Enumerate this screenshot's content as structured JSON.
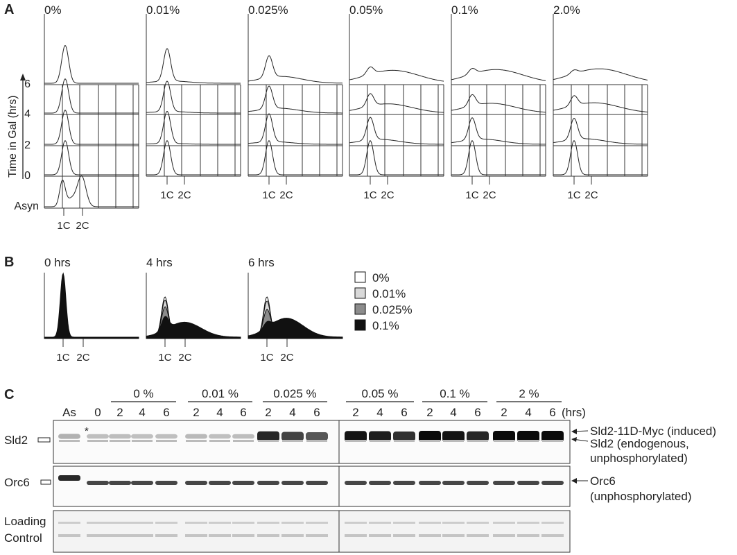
{
  "panelA": {
    "letter": "A",
    "y_axis_label": "Time in Gal (hrs)",
    "row_labels": [
      "6",
      "4",
      "2",
      "0",
      "Asyn"
    ],
    "asyn_label": "Asyn",
    "x_ticks": [
      "1C",
      "2C"
    ],
    "concentrations": [
      {
        "label": "0%",
        "arrest_strength": 1.0
      },
      {
        "label": "0.01%",
        "arrest_strength": 0.85
      },
      {
        "label": "0.025%",
        "arrest_strength": 0.55
      },
      {
        "label": "0.05%",
        "arrest_strength": 0.15
      },
      {
        "label": "0.1%",
        "arrest_strength": 0.1
      },
      {
        "label": "2.0%",
        "arrest_strength": 0.05
      }
    ]
  },
  "panelB": {
    "letter": "B",
    "timepoints": [
      "0 hrs",
      "4 hrs",
      "6 hrs"
    ],
    "x_ticks": [
      "1C",
      "2C"
    ],
    "legend": [
      {
        "label": "0%",
        "color": "#ffffff"
      },
      {
        "label": "0.01%",
        "color": "#d9d9d9"
      },
      {
        "label": "0.025%",
        "color": "#8c8c8c"
      },
      {
        "label": "0.1%",
        "color": "#111111"
      }
    ]
  },
  "panelC": {
    "letter": "C",
    "group_labels_left": [
      "0 %",
      "0.01 %",
      "0.025 %"
    ],
    "group_labels_right": [
      "0.05 %",
      "0.1 %",
      "2 %"
    ],
    "lane_labels_left": [
      "As",
      "0",
      "2",
      "4",
      "6",
      "2",
      "4",
      "6",
      "2",
      "4",
      "6"
    ],
    "lane_labels_right": [
      "2",
      "4",
      "6",
      "2",
      "4",
      "6",
      "2",
      "4",
      "6"
    ],
    "units": "(hrs)",
    "asterisk": "*",
    "rows": [
      {
        "label": "Sld2"
      },
      {
        "label": "Orc6"
      },
      {
        "label": "Loading Control"
      }
    ],
    "loading_label_line1": "Loading",
    "loading_label_line2": "Control",
    "annotations": {
      "sld2_myc": "Sld2-11D-Myc (induced)",
      "sld2_endog_1": "Sld2 (endogenous,",
      "sld2_endog_2": "unphosphorylated)",
      "orc6_1": "Orc6",
      "orc6_2": "(unphosphorylated)"
    }
  }
}
